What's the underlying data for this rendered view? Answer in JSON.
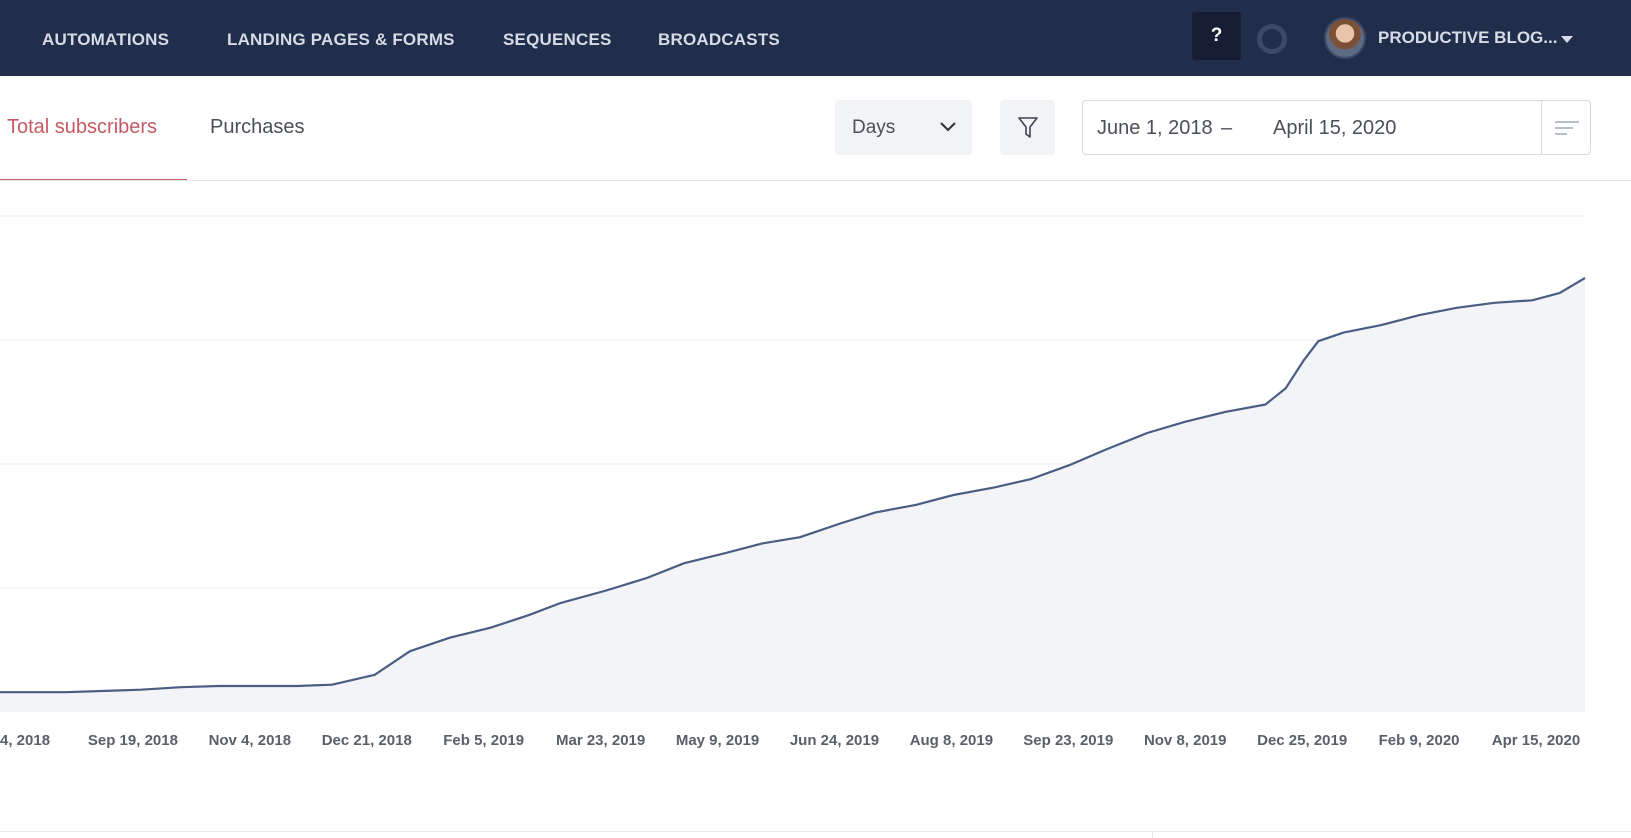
{
  "nav": {
    "items": [
      {
        "label": "AUTOMATIONS",
        "name": "nav-item-automations"
      },
      {
        "label": "LANDING PAGES & FORMS",
        "name": "nav-item-landing-pages-forms"
      },
      {
        "label": "SEQUENCES",
        "name": "nav-item-sequences"
      },
      {
        "label": "BROADCASTS",
        "name": "nav-item-broadcasts"
      }
    ],
    "help_label": "?",
    "account_label": "PRODUCTIVE BLOG...",
    "icons": {
      "help": "question-mark-icon",
      "status": "ring-icon",
      "account": "avatar",
      "dropdown": "caret-down-icon"
    }
  },
  "tabs": [
    {
      "label": "Total subscribers",
      "active": true
    },
    {
      "label": "Purchases",
      "active": false
    }
  ],
  "controls": {
    "interval": {
      "selected": "Days"
    },
    "filter_icon": "funnel-icon",
    "daterange": {
      "start": "June 1, 2018",
      "separator": "–",
      "end": "April 15, 2020"
    },
    "menu_icon": "list-icon"
  },
  "colors": {
    "nav_bg": "#202d4b",
    "accent": "#c65a64",
    "line": "#4a5d82",
    "area": "#f2f4f8",
    "grid": "#eceef1"
  },
  "chart_data": {
    "type": "area",
    "x_tick_labels": [
      "4, 2018",
      "Sep 19, 2018",
      "Nov 4, 2018",
      "Dec 21, 2018",
      "Feb 5, 2019",
      "Mar 23, 2019",
      "May 9, 2019",
      "Jun 24, 2019",
      "Aug 8, 2019",
      "Sep 23, 2019",
      "Nov 8, 2019",
      "Dec 25, 2019",
      "Feb 9, 2020",
      "Apr 15, 2020"
    ],
    "ylim": [
      0,
      4
    ],
    "y_gridlines": [
      1,
      2,
      3,
      4
    ],
    "grid": true,
    "series": [
      {
        "x": [
          "2018-08-04",
          "2018-08-20",
          "2018-09-05",
          "2018-09-19",
          "2018-10-05",
          "2018-10-20",
          "2018-11-04",
          "2018-11-20",
          "2018-12-04",
          "2018-12-21",
          "2019-01-04",
          "2019-01-20",
          "2019-02-05",
          "2019-02-20",
          "2019-03-05",
          "2019-03-23",
          "2019-04-08",
          "2019-04-23",
          "2019-05-09",
          "2019-05-24",
          "2019-06-08",
          "2019-06-24",
          "2019-07-08",
          "2019-07-24",
          "2019-08-08",
          "2019-08-24",
          "2019-09-08",
          "2019-09-23",
          "2019-10-08",
          "2019-10-24",
          "2019-11-08",
          "2019-11-24",
          "2019-12-10",
          "2019-12-18",
          "2019-12-25",
          "2019-12-31",
          "2020-01-10",
          "2020-01-25",
          "2020-02-09",
          "2020-02-24",
          "2020-03-10",
          "2020-03-25",
          "2020-04-05",
          "2020-04-15"
        ],
        "values": [
          0.16,
          0.16,
          0.17,
          0.18,
          0.2,
          0.21,
          0.21,
          0.21,
          0.22,
          0.3,
          0.49,
          0.6,
          0.68,
          0.78,
          0.88,
          0.98,
          1.08,
          1.2,
          1.28,
          1.36,
          1.41,
          1.52,
          1.61,
          1.67,
          1.75,
          1.81,
          1.88,
          1.99,
          2.12,
          2.25,
          2.34,
          2.42,
          2.48,
          2.61,
          2.83,
          2.99,
          3.06,
          3.12,
          3.2,
          3.26,
          3.3,
          3.32,
          3.38,
          3.5
        ]
      }
    ]
  }
}
